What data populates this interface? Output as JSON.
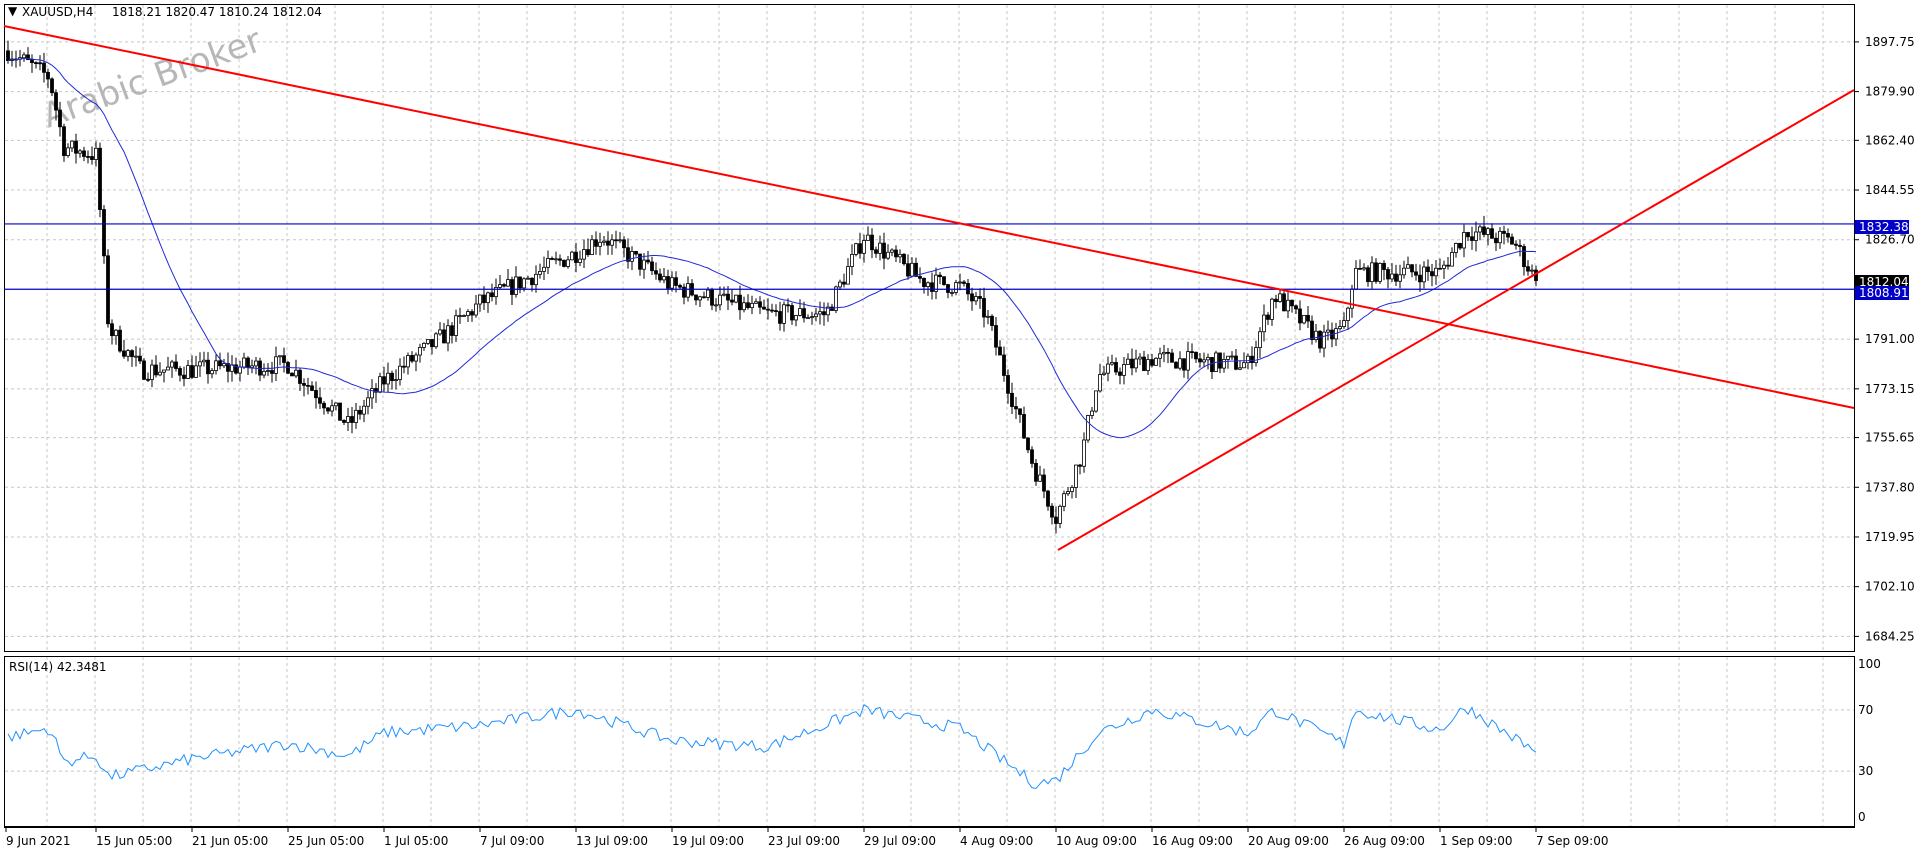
{
  "header": {
    "symbol": "XAUUSD,H4",
    "ohlc": "1818.21 1820.47 1810.24 1812.04"
  },
  "watermark": "Arabic Broker",
  "rsi_label": "RSI(14) 42.3481",
  "price_axis": {
    "ticks": [
      "1897.75",
      "1879.90",
      "1862.40",
      "1844.55",
      "1826.70",
      "1791.00",
      "1773.15",
      "1755.65",
      "1737.80",
      "1719.95",
      "1702.10",
      "1684.25"
    ],
    "current_price": "1812.04",
    "level_upper": "1832.38",
    "level_lower": "1808.91"
  },
  "rsi_axis": {
    "ticks": [
      "100",
      "70",
      "30",
      "0"
    ]
  },
  "time_axis": {
    "labels": [
      "9 Jun 2021",
      "15 Jun 05:00",
      "21 Jun 05:00",
      "25 Jun 05:00",
      "1 Jul 05:00",
      "7 Jul 09:00",
      "13 Jul 09:00",
      "19 Jul 09:00",
      "23 Jul 09:00",
      "29 Jul 09:00",
      "4 Aug 09:00",
      "10 Aug 09:00",
      "16 Aug 09:00",
      "20 Aug 09:00",
      "26 Aug 09:00",
      "1 Sep 09:00",
      "7 Sep 09:00"
    ]
  },
  "colors": {
    "candle": "#000000",
    "ma": "#1f2bd6",
    "trendline": "#ff0000",
    "level": "#0000c8",
    "rsi": "#1e90ff",
    "grid": "#c8c8c8"
  },
  "chart_data": {
    "type": "candlestick",
    "symbol": "XAUUSD",
    "timeframe": "H4",
    "ylim": [
      1679,
      1911
    ],
    "current": {
      "open": 1818.21,
      "high": 1820.47,
      "low": 1810.24,
      "close": 1812.04
    },
    "horizontal_levels": [
      1832.38,
      1808.91
    ],
    "trendlines": [
      {
        "name": "descending",
        "points": [
          [
            "9 Jun 2021",
            1903
          ],
          [
            "7 Sep 09:00",
            1766
          ]
        ]
      },
      {
        "name": "ascending",
        "points": [
          [
            "10 Aug 09:00",
            1716
          ],
          [
            "7 Sep 09:00",
            1883
          ]
        ]
      }
    ],
    "price_path": [
      [
        "9 Jun 2021",
        1895
      ],
      [
        "12 Jun",
        1885
      ],
      [
        "13 Jun",
        1860
      ],
      [
        "15 Jun 05:00",
        1857
      ],
      [
        "16 Jun",
        1795
      ],
      [
        "18 Jun",
        1780
      ],
      [
        "21 Jun 05:00",
        1780
      ],
      [
        "25 Jun 05:00",
        1782
      ],
      [
        "29 Jun",
        1760
      ],
      [
        "1 Jul 05:00",
        1776
      ],
      [
        "5 Jul",
        1792
      ],
      [
        "7 Jul 09:00",
        1804
      ],
      [
        "13 Jul 09:00",
        1822
      ],
      [
        "15 Jul",
        1828
      ],
      [
        "19 Jul 09:00",
        1810
      ],
      [
        "23 Jul 09:00",
        1800
      ],
      [
        "27 Jul",
        1800
      ],
      [
        "29 Jul 09:00",
        1828
      ],
      [
        "2 Aug",
        1812
      ],
      [
        "4 Aug 09:00",
        1810
      ],
      [
        "6 Aug",
        1800
      ],
      [
        "9 Aug",
        1745
      ],
      [
        "10 Aug 09:00",
        1727
      ],
      [
        "12 Aug",
        1750
      ],
      [
        "13 Aug",
        1778
      ],
      [
        "16 Aug 09:00",
        1784
      ],
      [
        "20 Aug 09:00",
        1782
      ],
      [
        "22 Aug",
        1807
      ],
      [
        "25 Aug",
        1790
      ],
      [
        "26 Aug 09:00",
        1795
      ],
      [
        "27 Aug",
        1815
      ],
      [
        "1 Sep 09:00",
        1815
      ],
      [
        "3 Sep",
        1830
      ],
      [
        "6 Sep",
        1826
      ],
      [
        "7 Sep 09:00",
        1812
      ]
    ],
    "rsi": {
      "period": 14,
      "last": 42.3481,
      "ylim": [
        0,
        100
      ],
      "levels": [
        70,
        30
      ],
      "path": [
        [
          "9 Jun 2021",
          52
        ],
        [
          "12 Jun",
          58
        ],
        [
          "13 Jun",
          36
        ],
        [
          "15 Jun 05:00",
          40
        ],
        [
          "16 Jun",
          26
        ],
        [
          "21 Jun 05:00",
          38
        ],
        [
          "25 Jun 05:00",
          48
        ],
        [
          "29 Jun",
          40
        ],
        [
          "1 Jul 05:00",
          55
        ],
        [
          "7 Jul 09:00",
          60
        ],
        [
          "13 Jul 09:00",
          70
        ],
        [
          "19 Jul 09:00",
          50
        ],
        [
          "23 Jul 09:00",
          46
        ],
        [
          "29 Jul 09:00",
          70
        ],
        [
          "4 Aug 09:00",
          58
        ],
        [
          "9 Aug",
          22
        ],
        [
          "10 Aug 09:00",
          24
        ],
        [
          "13 Aug",
          55
        ],
        [
          "16 Aug 09:00",
          70
        ],
        [
          "20 Aug 09:00",
          55
        ],
        [
          "22 Aug",
          70
        ],
        [
          "26 Aug 09:00",
          48
        ],
        [
          "27 Aug",
          70
        ],
        [
          "1 Sep 09:00",
          57
        ],
        [
          "3 Sep",
          72
        ],
        [
          "7 Sep 09:00",
          42.35
        ]
      ]
    }
  }
}
